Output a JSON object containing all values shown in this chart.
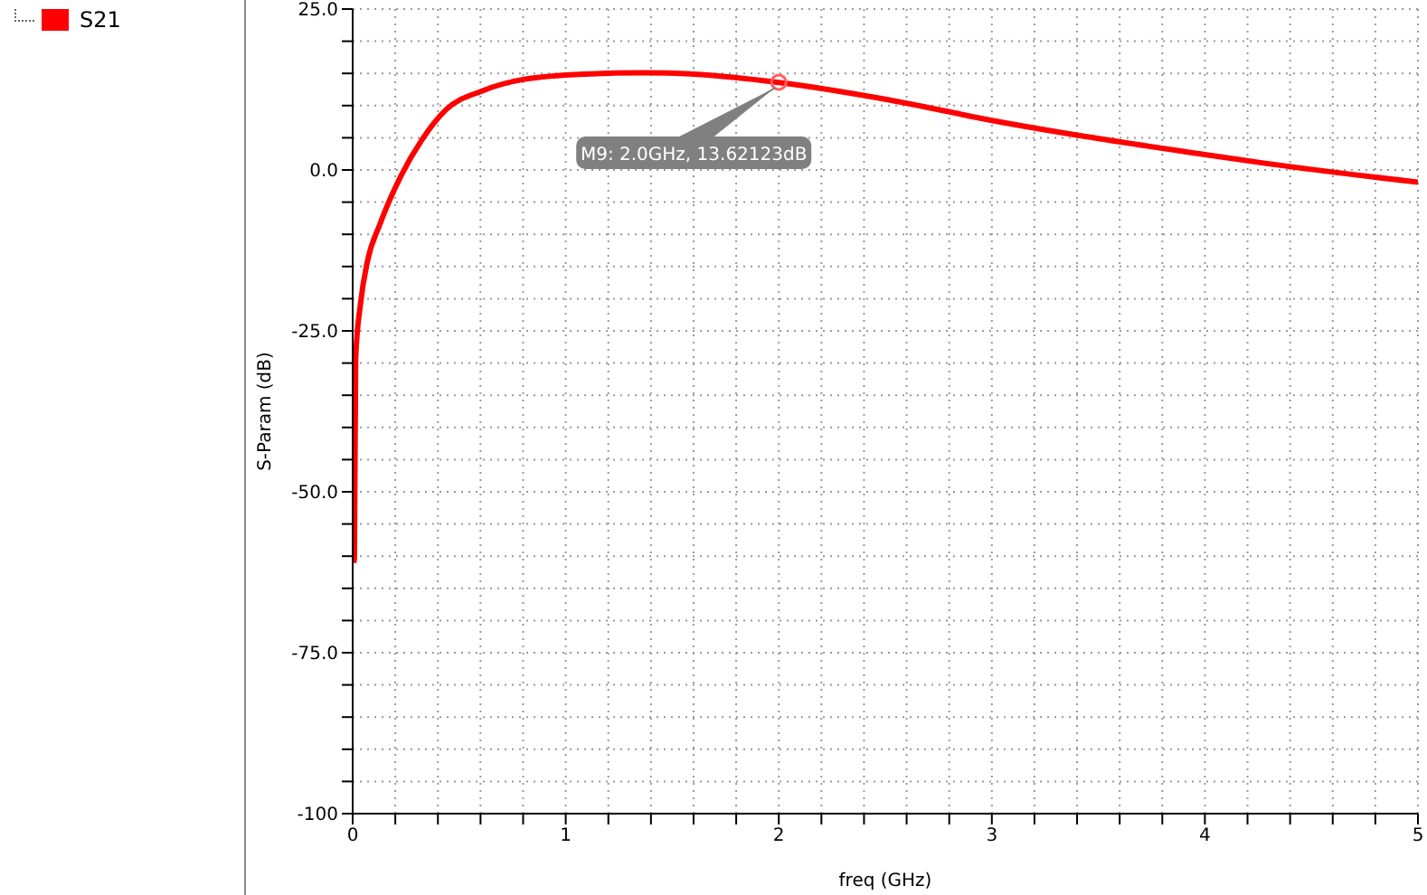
{
  "chart_data": {
    "type": "line",
    "xlabel": "freq (GHz)",
    "ylabel": "S-Param (dB)",
    "xlim": [
      0,
      5
    ],
    "ylim": [
      -100,
      25
    ],
    "xticks": [
      0,
      {
        "value": 0.2,
        "label": null
      },
      {
        "value": 0.4,
        "label": null
      },
      {
        "value": 0.6,
        "label": null
      },
      {
        "value": 0.8,
        "label": null
      },
      1,
      {
        "value": 1.2,
        "label": null
      },
      {
        "value": 1.4,
        "label": null
      },
      {
        "value": 1.6,
        "label": null
      },
      {
        "value": 1.8,
        "label": null
      },
      2,
      {
        "value": 2.2,
        "label": null
      },
      {
        "value": 2.4,
        "label": null
      },
      {
        "value": 2.6,
        "label": null
      },
      {
        "value": 2.8,
        "label": null
      },
      3,
      {
        "value": 3.2,
        "label": null
      },
      {
        "value": 3.4,
        "label": null
      },
      {
        "value": 3.6,
        "label": null
      },
      {
        "value": 3.8,
        "label": null
      },
      4,
      {
        "value": 4.2,
        "label": null
      },
      {
        "value": 4.4,
        "label": null
      },
      {
        "value": 4.6,
        "label": null
      },
      {
        "value": 4.8,
        "label": null
      },
      5
    ],
    "yticks": [
      {
        "value": -100,
        "label": "-100"
      },
      {
        "value": -95,
        "label": null
      },
      {
        "value": -90,
        "label": null
      },
      {
        "value": -85,
        "label": null
      },
      {
        "value": -80,
        "label": null
      },
      {
        "value": -75,
        "label": "-75.0"
      },
      {
        "value": -70,
        "label": null
      },
      {
        "value": -65,
        "label": null
      },
      {
        "value": -60,
        "label": null
      },
      {
        "value": -55,
        "label": null
      },
      {
        "value": -50,
        "label": "-50.0"
      },
      {
        "value": -45,
        "label": null
      },
      {
        "value": -40,
        "label": null
      },
      {
        "value": -35,
        "label": null
      },
      {
        "value": -30,
        "label": null
      },
      {
        "value": -25,
        "label": "-25.0"
      },
      {
        "value": -20,
        "label": null
      },
      {
        "value": -15,
        "label": null
      },
      {
        "value": -10,
        "label": null
      },
      {
        "value": -5,
        "label": null
      },
      {
        "value": 0,
        "label": "0.0"
      },
      {
        "value": 5,
        "label": null
      },
      {
        "value": 10,
        "label": null
      },
      {
        "value": 15,
        "label": null
      },
      {
        "value": 20,
        "label": null
      },
      {
        "value": 25,
        "label": "25.0"
      }
    ],
    "grid": true,
    "legend": "top left",
    "marker": "none",
    "line_style": "solid",
    "x": [
      0.005,
      0.008,
      0.014,
      0.037,
      0.07,
      0.127,
      0.227,
      0.325,
      0.439,
      0.609,
      0.806,
      1.09,
      1.37,
      1.6,
      2.0,
      2.5,
      3.0,
      3.44,
      4.0,
      4.29,
      5.0
    ],
    "series": [
      {
        "name": "S21",
        "color": "#ff0000",
        "values": [
          -61,
          -60.3,
          -29.2,
          -20.7,
          -14.1,
          -8.5,
          -0.9,
          4.7,
          9.4,
          12.3,
          14.1,
          14.9,
          15.1,
          14.9,
          13.6,
          11.0,
          7.7,
          5.2,
          2.4,
          1.0,
          -1.9
        ]
      }
    ],
    "annotations": [
      {
        "text": "M9: 2.0GHz, 13.62123dB",
        "x": 2.0,
        "y": 13.62123
      }
    ]
  }
}
